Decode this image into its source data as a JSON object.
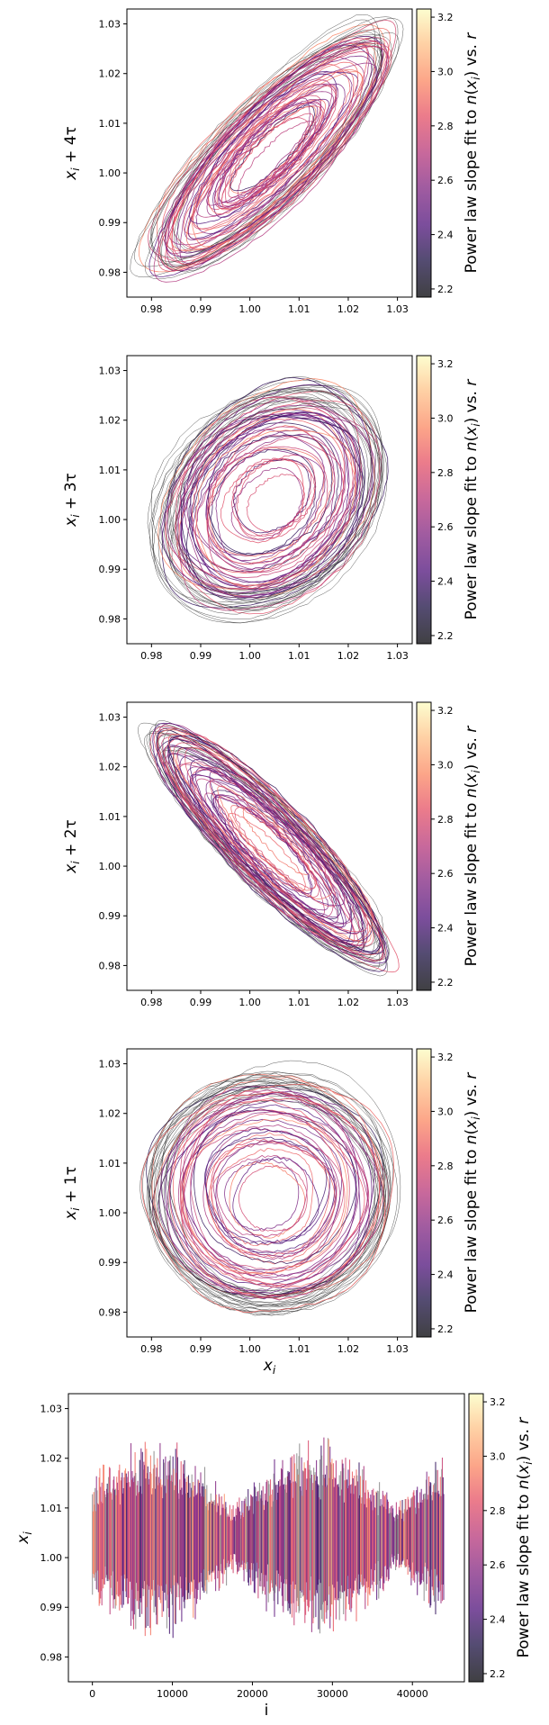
{
  "figure": {
    "colormap": "magma",
    "colorbar": {
      "label_text": "Power law slope fit to ",
      "label_math": "n(x_i) vs. r",
      "ticks": [
        "2.2",
        "2.4",
        "2.6",
        "2.8",
        "3.0",
        "3.2"
      ],
      "range": [
        2.17,
        3.23
      ]
    }
  },
  "chart_data": [
    {
      "type": "line",
      "title": "",
      "xlabel": "",
      "ylabel_main": "x",
      "ylabel_sub": "i",
      "ylabel_tail": " + 4τ",
      "xlim": [
        0.975,
        1.033
      ],
      "ylim": [
        0.975,
        1.033
      ],
      "xticks": [
        "0.98",
        "0.99",
        "1.00",
        "1.01",
        "1.02",
        "1.03"
      ],
      "yticks": [
        "0.98",
        "0.99",
        "1.00",
        "1.01",
        "1.02",
        "1.03"
      ],
      "pattern": {
        "kind": "ellipse",
        "center": [
          1.004,
          1.004
        ],
        "angle_deg": 45,
        "major": 0.031,
        "minor": 0.009
      }
    },
    {
      "type": "line",
      "title": "",
      "xlabel": "",
      "ylabel_main": "x",
      "ylabel_sub": "i",
      "ylabel_tail": " + 3τ",
      "xlim": [
        0.975,
        1.033
      ],
      "ylim": [
        0.975,
        1.033
      ],
      "xticks": [
        "0.98",
        "0.99",
        "1.00",
        "1.01",
        "1.02",
        "1.03"
      ],
      "yticks": [
        "0.98",
        "0.99",
        "1.00",
        "1.01",
        "1.02",
        "1.03"
      ],
      "pattern": {
        "kind": "ellipse",
        "center": [
          1.004,
          1.004
        ],
        "angle_deg": 45,
        "major": 0.024,
        "minor": 0.018
      }
    },
    {
      "type": "line",
      "title": "",
      "xlabel": "",
      "ylabel_main": "x",
      "ylabel_sub": "i",
      "ylabel_tail": " + 2τ",
      "xlim": [
        0.975,
        1.033
      ],
      "ylim": [
        0.975,
        1.033
      ],
      "xticks": [
        "0.98",
        "0.99",
        "1.00",
        "1.01",
        "1.02",
        "1.03"
      ],
      "yticks": [
        "0.98",
        "0.99",
        "1.00",
        "1.01",
        "1.02",
        "1.03"
      ],
      "pattern": {
        "kind": "ellipse",
        "center": [
          1.004,
          1.004
        ],
        "angle_deg": -45,
        "major": 0.03,
        "minor": 0.007
      }
    },
    {
      "type": "line",
      "title": "",
      "xlabel_main": "x",
      "xlabel_sub": "i",
      "ylabel_main": "x",
      "ylabel_sub": "i",
      "ylabel_tail": " + 1τ",
      "xlim": [
        0.975,
        1.033
      ],
      "ylim": [
        0.975,
        1.033
      ],
      "xticks": [
        "0.98",
        "0.99",
        "1.00",
        "1.01",
        "1.02",
        "1.03"
      ],
      "yticks": [
        "0.98",
        "0.99",
        "1.00",
        "1.01",
        "1.02",
        "1.03"
      ],
      "pattern": {
        "kind": "ellipse",
        "center": [
          1.004,
          1.004
        ],
        "angle_deg": 0,
        "major": 0.023,
        "minor": 0.022
      }
    },
    {
      "type": "line",
      "title": "",
      "xlabel": "i",
      "ylabel_main": "x",
      "ylabel_sub": "i",
      "ylabel_tail": "",
      "xlim": [
        -3000,
        46500
      ],
      "ylim": [
        0.975,
        1.033
      ],
      "xticks": [
        "0",
        "10000",
        "20000",
        "30000",
        "40000"
      ],
      "yticks": [
        "0.98",
        "0.99",
        "1.00",
        "1.01",
        "1.02",
        "1.03"
      ],
      "pattern": {
        "kind": "timeseries",
        "n": 44000,
        "center": 1.004,
        "amplitude": 0.02
      }
    }
  ]
}
